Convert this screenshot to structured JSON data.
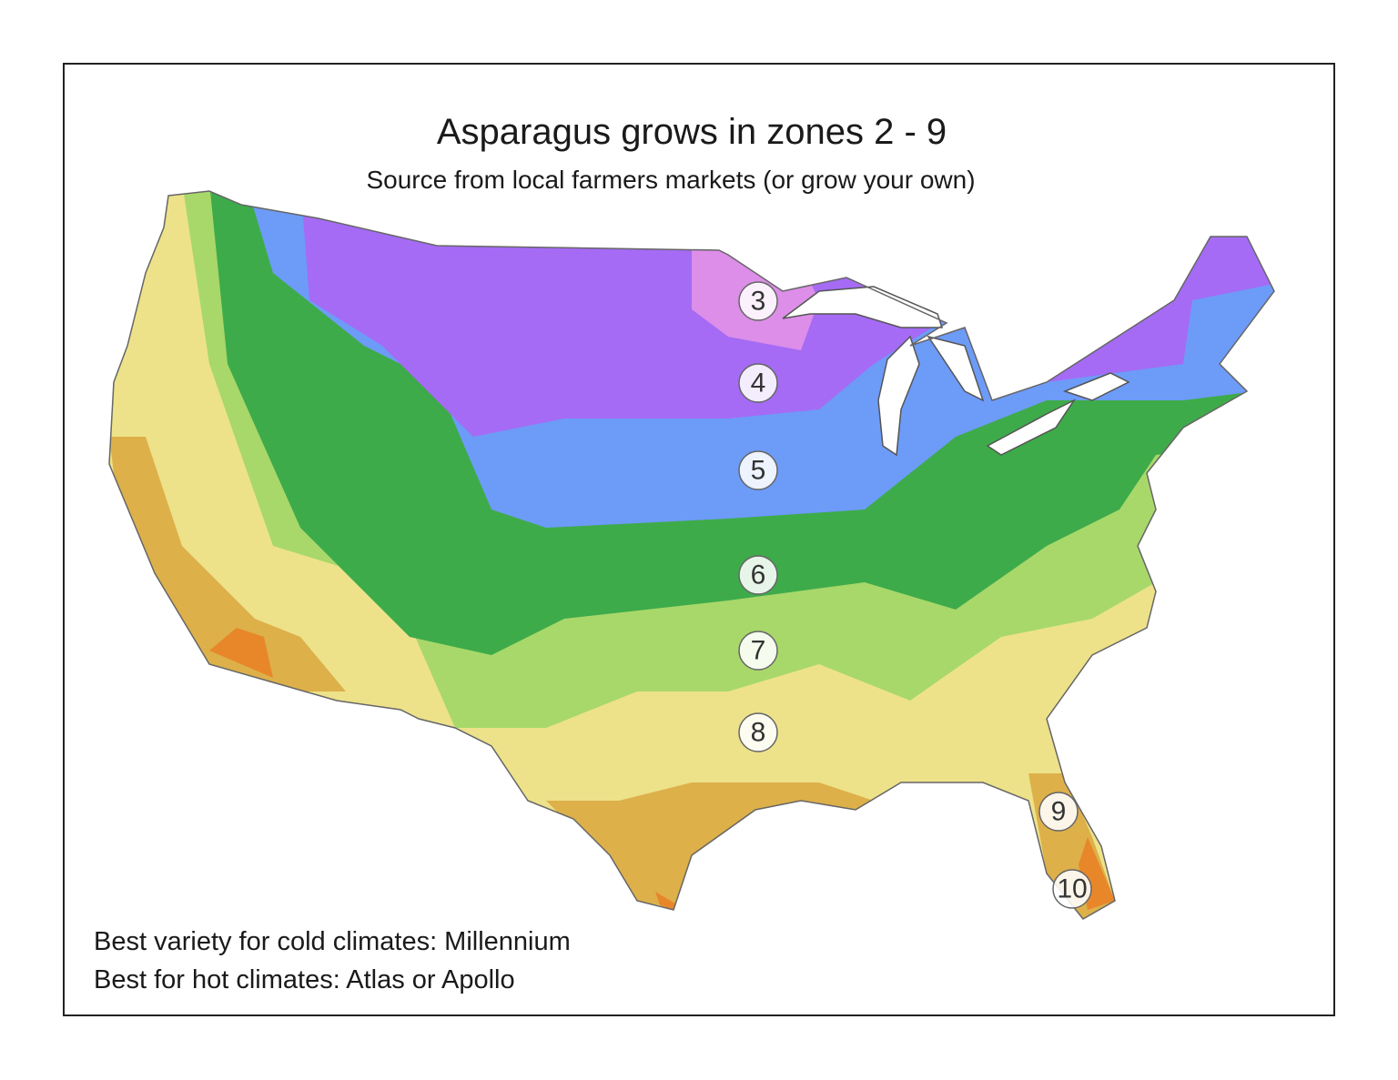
{
  "header": {
    "title": "Asparagus grows in zones 2 - 9",
    "subtitle": "Source from local farmers markets (or grow your own)"
  },
  "map": {
    "zones": [
      "3",
      "4",
      "5",
      "6",
      "7",
      "8",
      "9",
      "10"
    ]
  },
  "notes": [
    "Best variety for cold climates: Millennium",
    "Best for hot climates: Atlas or Apollo"
  ]
}
